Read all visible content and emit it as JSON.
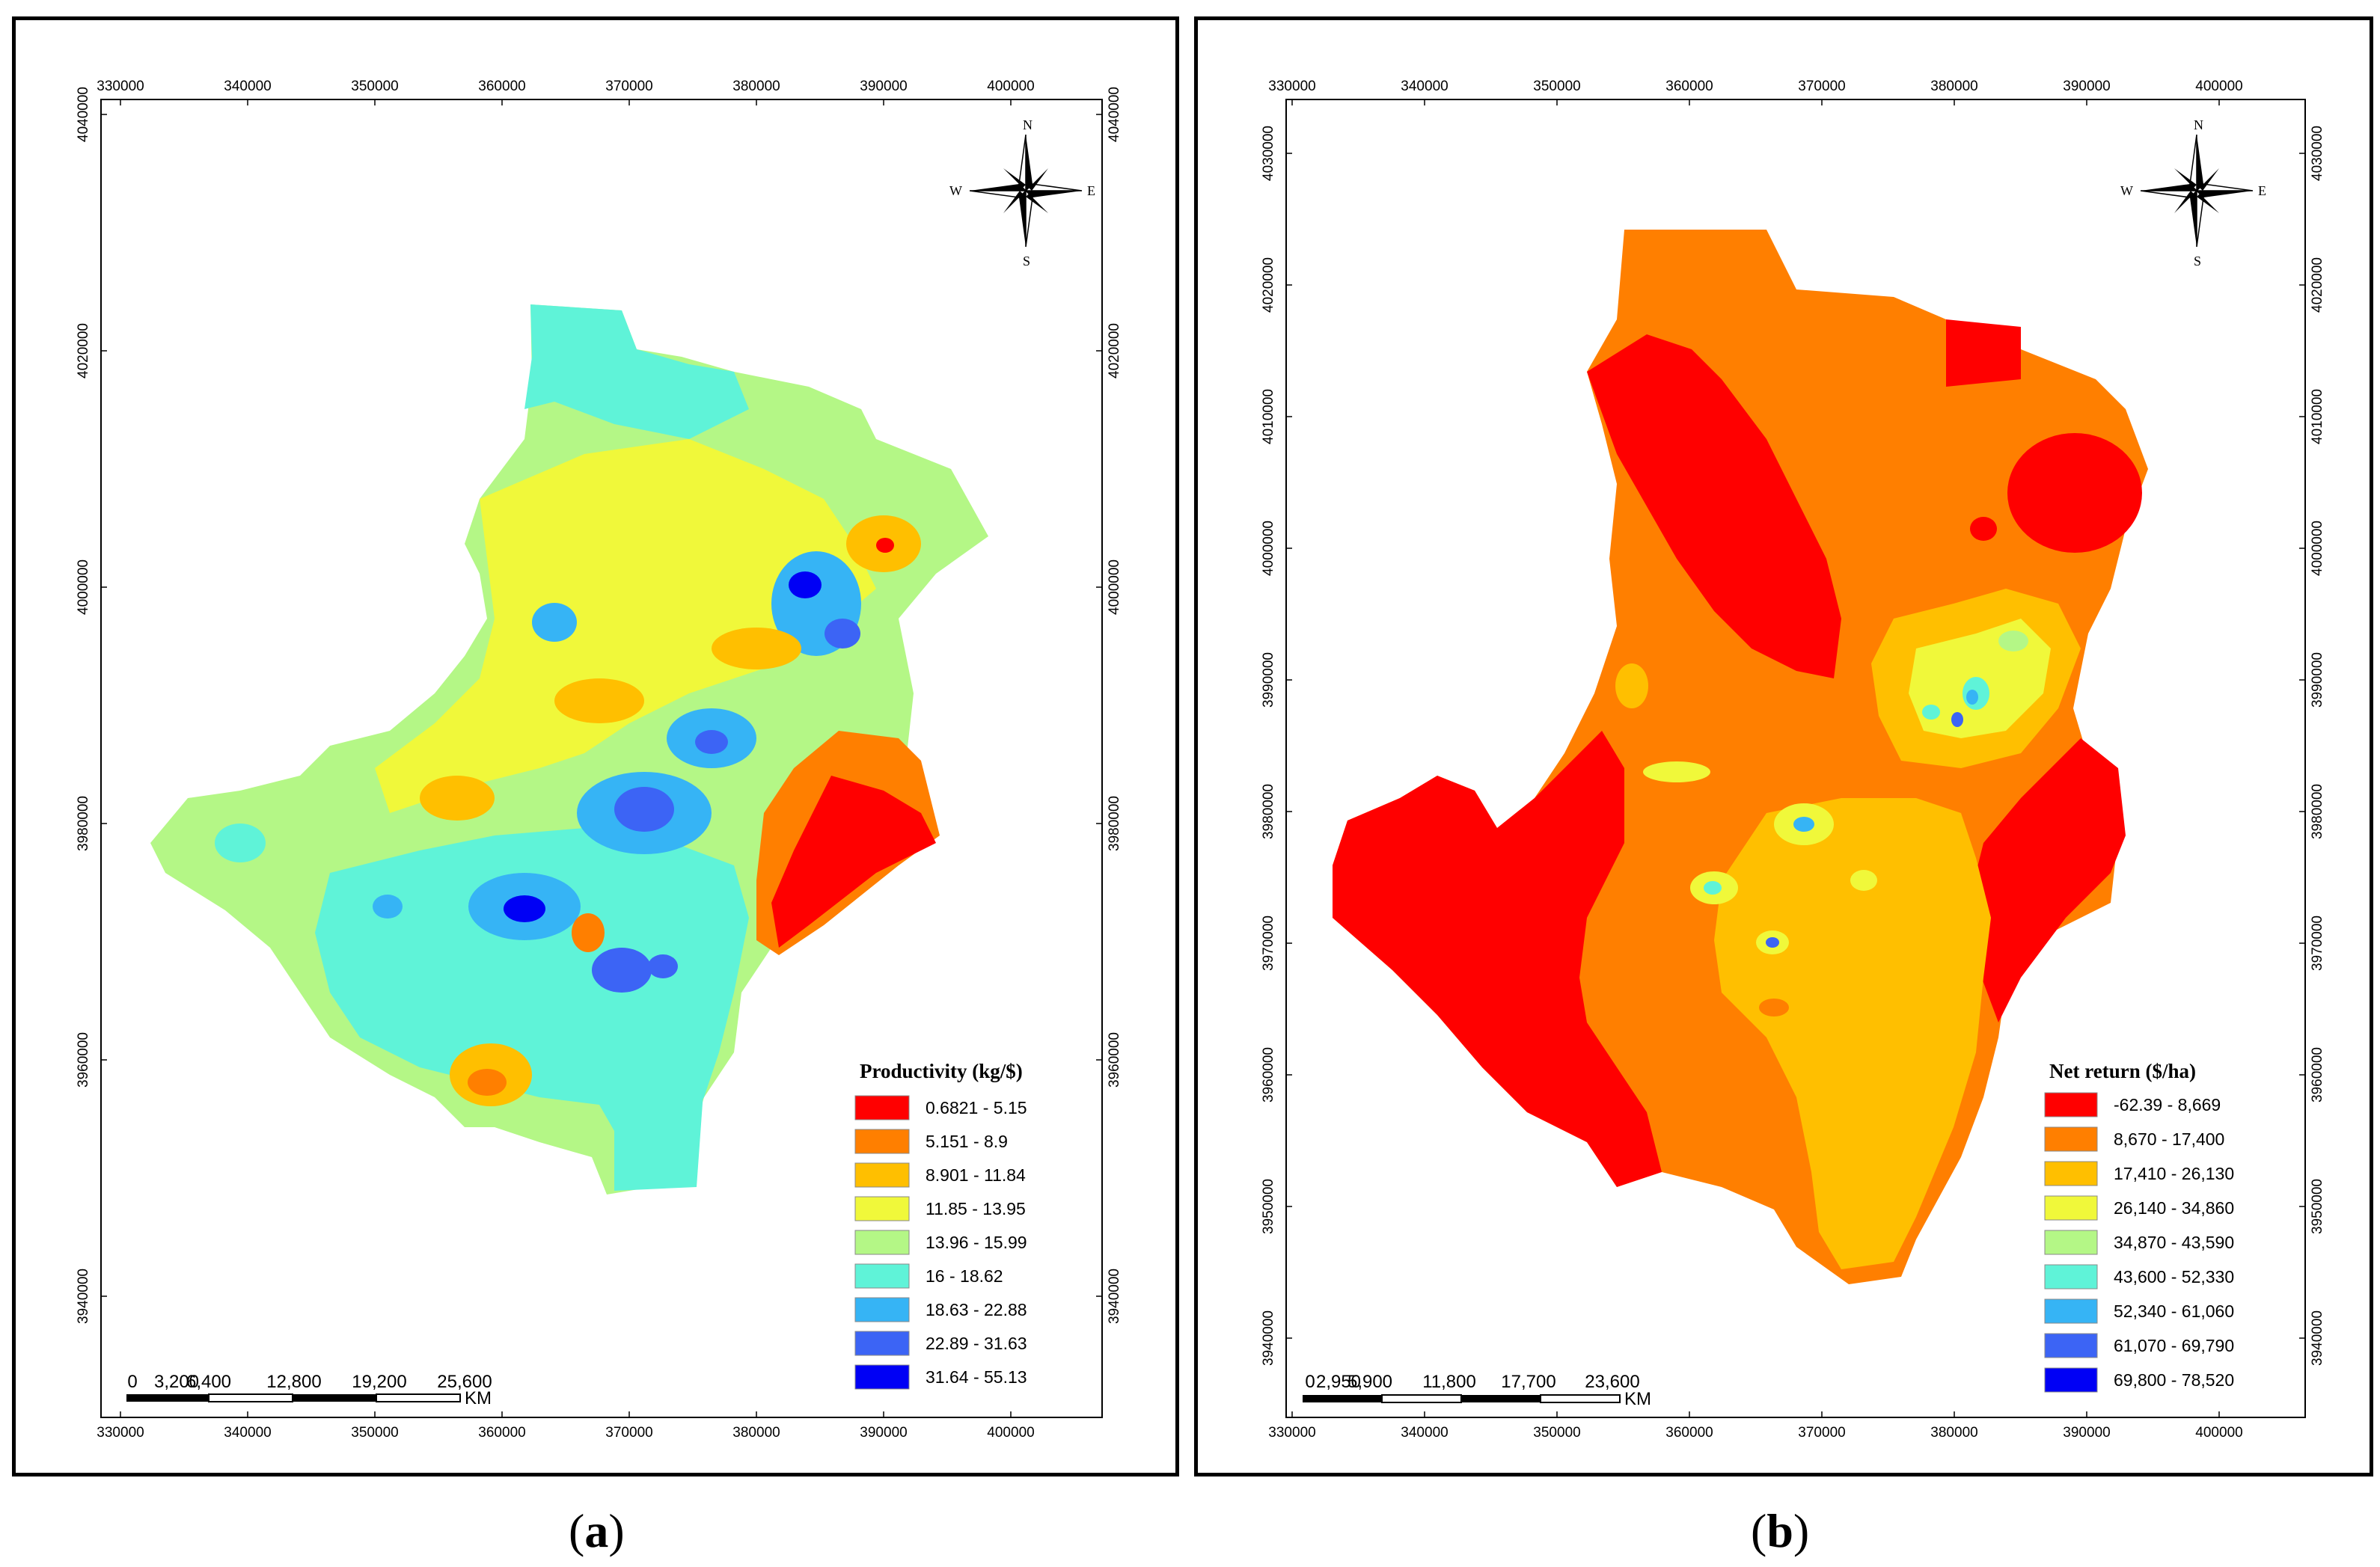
{
  "figure": {
    "panels": [
      {
        "id": "a",
        "caption_letter": "a",
        "x_ticks": [
          "330000",
          "340000",
          "350000",
          "360000",
          "370000",
          "380000",
          "390000",
          "400000"
        ],
        "y_ticks": [
          "4040000",
          "4020000",
          "4000000",
          "3980000",
          "3960000",
          "3940000"
        ],
        "legend": {
          "title": "Productivity (kg/$)",
          "classes": [
            {
              "label": "0.6821 - 5.15",
              "color": "#ff0000"
            },
            {
              "label": "5.151 - 8.9",
              "color": "#ff7f00"
            },
            {
              "label": "8.901 - 11.84",
              "color": "#ffbf00"
            },
            {
              "label": "11.85 - 13.95",
              "color": "#f0f83a"
            },
            {
              "label": "13.96 - 15.99",
              "color": "#b4f786"
            },
            {
              "label": "16 - 18.62",
              "color": "#5ff3d8"
            },
            {
              "label": "18.63 - 22.88",
              "color": "#36b4f5"
            },
            {
              "label": "22.89 - 31.63",
              "color": "#3c64f5"
            },
            {
              "label": "31.64 - 55.13",
              "color": "#0000f5"
            }
          ]
        },
        "scale_bar": {
          "labels": [
            "0",
            "3,200",
            "6,400",
            "12,800",
            "19,200",
            "25,600"
          ],
          "unit": "KM"
        },
        "compass": {
          "n": "N",
          "s": "S",
          "e": "E",
          "w": "W"
        }
      },
      {
        "id": "b",
        "caption_letter": "b",
        "x_ticks": [
          "330000",
          "340000",
          "350000",
          "360000",
          "370000",
          "380000",
          "390000",
          "400000"
        ],
        "y_ticks": [
          "4030000",
          "4020000",
          "4010000",
          "4000000",
          "3990000",
          "3980000",
          "3970000",
          "3960000",
          "3950000",
          "3940000"
        ],
        "legend": {
          "title": "Net return ($/ha)",
          "classes": [
            {
              "label": "-62.39 - 8,669",
              "color": "#ff0000"
            },
            {
              "label": "8,670 - 17,400",
              "color": "#ff7f00"
            },
            {
              "label": "17,410 - 26,130",
              "color": "#ffbf00"
            },
            {
              "label": "26,140 - 34,860",
              "color": "#f0f83a"
            },
            {
              "label": "34,870 - 43,590",
              "color": "#b4f786"
            },
            {
              "label": "43,600 - 52,330",
              "color": "#5ff3d8"
            },
            {
              "label": "52,340 - 61,060",
              "color": "#36b4f5"
            },
            {
              "label": "61,070 - 69,790",
              "color": "#3c64f5"
            },
            {
              "label": "69,800 - 78,520",
              "color": "#0000f5"
            }
          ]
        },
        "scale_bar": {
          "labels": [
            "0",
            "2,950",
            "5,900",
            "11,800",
            "17,700",
            "23,600"
          ],
          "unit": "KM"
        },
        "compass": {
          "n": "N",
          "s": "S",
          "e": "E",
          "w": "W"
        }
      }
    ]
  }
}
